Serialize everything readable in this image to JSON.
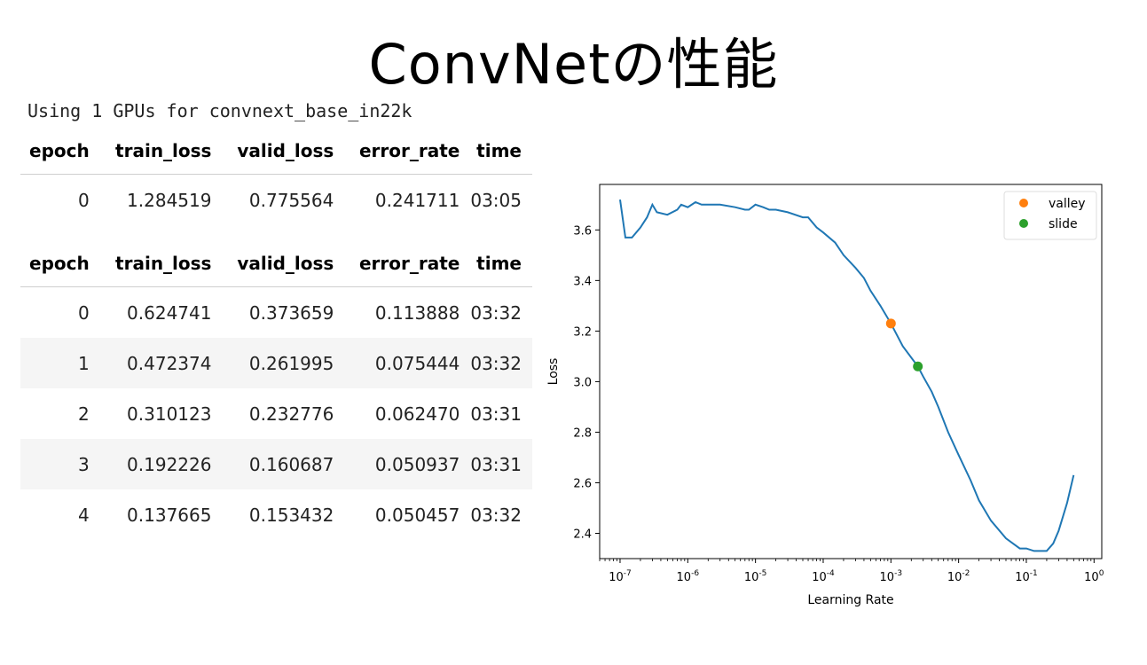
{
  "title": "ConvNetの性能",
  "log_line": "Using 1 GPUs for convnext_base_in22k",
  "tables": [
    {
      "columns": [
        "epoch",
        "train_loss",
        "valid_loss",
        "error_rate",
        "time"
      ],
      "rows": [
        [
          "0",
          "1.284519",
          "0.775564",
          "0.241711",
          "03:05"
        ]
      ]
    },
    {
      "columns": [
        "epoch",
        "train_loss",
        "valid_loss",
        "error_rate",
        "time"
      ],
      "rows": [
        [
          "0",
          "0.624741",
          "0.373659",
          "0.113888",
          "03:32"
        ],
        [
          "1",
          "0.472374",
          "0.261995",
          "0.075444",
          "03:32"
        ],
        [
          "2",
          "0.310123",
          "0.232776",
          "0.062470",
          "03:31"
        ],
        [
          "3",
          "0.192226",
          "0.160687",
          "0.050937",
          "03:31"
        ],
        [
          "4",
          "0.137665",
          "0.153432",
          "0.050457",
          "03:32"
        ]
      ]
    }
  ],
  "chart_data": {
    "type": "line",
    "xlabel": "Learning Rate",
    "ylabel": "Loss",
    "xscale": "log",
    "xlim": [
      5e-08,
      1.3
    ],
    "ylim": [
      2.3,
      3.78
    ],
    "xticks": [
      1e-07,
      1e-06,
      1e-05,
      0.0001,
      0.001,
      0.01,
      0.1,
      1
    ],
    "xtick_labels": [
      "10-7",
      "10-6",
      "10-5",
      "10-4",
      "10-3",
      "10-2",
      "10-1",
      "100"
    ],
    "yticks": [
      2.4,
      2.6,
      2.8,
      3.0,
      3.2,
      3.4,
      3.6
    ],
    "ytick_labels": [
      "2.4",
      "2.6",
      "2.8",
      "3.0",
      "3.2",
      "3.4",
      "3.6"
    ],
    "grid": false,
    "legend": "top-right",
    "line_color": "#1f77b4",
    "series": [
      {
        "x": [
          1e-07,
          1.2e-07,
          1.5e-07,
          2e-07,
          2.5e-07,
          3e-07,
          3.5e-07,
          5e-07,
          7e-07,
          8e-07,
          1e-06,
          1.3e-06,
          1.6e-06,
          2e-06,
          3e-06,
          5e-06,
          7e-06,
          8e-06,
          1e-05,
          1.3e-05,
          1.6e-05,
          2e-05,
          3e-05,
          5e-05,
          6e-05,
          8e-05,
          0.0001,
          0.00015,
          0.0002,
          0.0003,
          0.0004,
          0.0005,
          0.0007,
          0.001,
          0.0015,
          0.0025,
          0.003,
          0.004,
          0.005,
          0.007,
          0.01,
          0.015,
          0.02,
          0.03,
          0.05,
          0.08,
          0.1,
          0.13,
          0.16,
          0.2,
          0.25,
          0.3,
          0.4,
          0.5
        ],
        "y": [
          3.72,
          3.57,
          3.57,
          3.61,
          3.65,
          3.7,
          3.67,
          3.66,
          3.68,
          3.7,
          3.69,
          3.71,
          3.7,
          3.7,
          3.7,
          3.69,
          3.68,
          3.68,
          3.7,
          3.69,
          3.68,
          3.68,
          3.67,
          3.65,
          3.65,
          3.61,
          3.59,
          3.55,
          3.5,
          3.45,
          3.41,
          3.36,
          3.3,
          3.23,
          3.14,
          3.06,
          3.02,
          2.96,
          2.9,
          2.8,
          2.71,
          2.61,
          2.53,
          2.45,
          2.38,
          2.34,
          2.34,
          2.33,
          2.33,
          2.33,
          2.36,
          2.41,
          2.52,
          2.63
        ]
      },
      {
        "name": "valley",
        "color": "#ff7f0e",
        "x": [
          0.001
        ],
        "y": [
          3.23
        ]
      },
      {
        "name": "slide",
        "color": "#2ca02c",
        "x": [
          0.0025
        ],
        "y": [
          3.06
        ]
      }
    ]
  }
}
